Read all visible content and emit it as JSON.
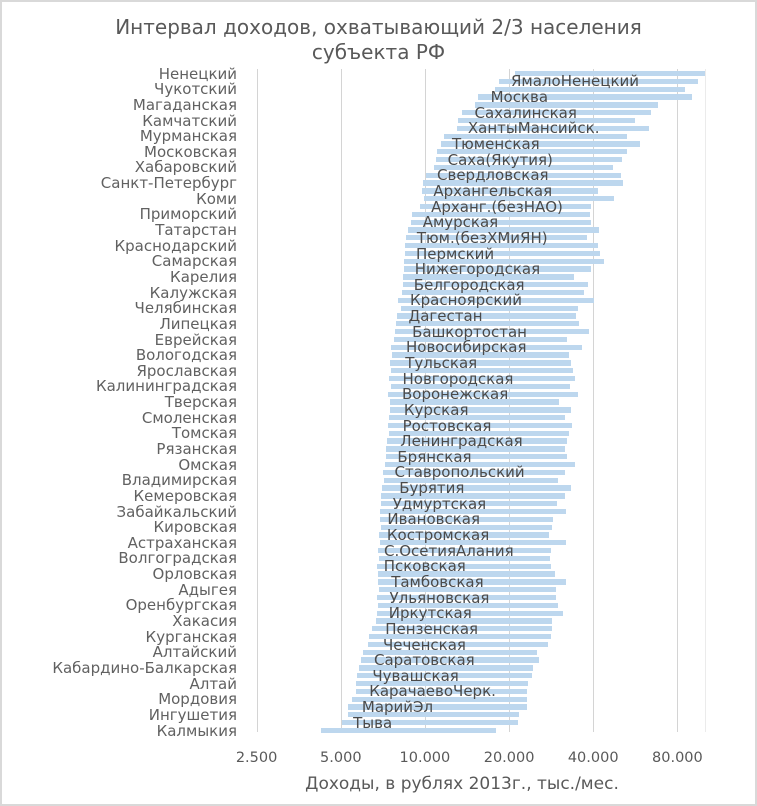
{
  "title": {
    "line1": "Интервал доходов, охватывающий 2/3 населения",
    "line2": "субъекта РФ"
  },
  "x_axis": {
    "title": "Доходы, в рублях 2013г., тыс./мес.",
    "scale": "log2",
    "min": 2500,
    "max": 100000,
    "ticks": [
      {
        "label": "2.500",
        "value": 2500
      },
      {
        "label": "5.000",
        "value": 5000
      },
      {
        "label": "10.000",
        "value": 10000
      },
      {
        "label": "20.000",
        "value": 20000
      },
      {
        "label": "40.000",
        "value": 40000
      },
      {
        "label": "80.000",
        "value": 80000
      }
    ]
  },
  "colors": {
    "bar_fill": "#BDD7EE",
    "gridline": "#D4D4D4",
    "plot_edge": "#E9E9E9",
    "axis_text": "#616161",
    "bar_label_text": "#4A4A4A",
    "title_text": "#595959",
    "frame": "#D9D9D9"
  },
  "chart_data": {
    "type": "bar",
    "subtype": "horizontal-range-bars",
    "title": "Интервал доходов, охватывающий 2/3 населения субъекта РФ",
    "xlabel": "Доходы, в рублях 2013г., тыс./мес.",
    "ylabel": "",
    "x_range": [
      2500,
      100000
    ],
    "grid": "vertical",
    "legend": "none",
    "regions": [
      {
        "name": "Ненецкий",
        "side": "axis",
        "low": 21000,
        "high": 100750
      },
      {
        "name": "ЯмалоНенецкий",
        "side": "bar",
        "low": 18380,
        "high": 94790,
        "label_at": 20490
      },
      {
        "name": "Чукотский",
        "side": "axis",
        "low": 17780,
        "high": 84890
      },
      {
        "name": "Москва",
        "side": "bar",
        "low": 15530,
        "high": 90150,
        "label_at": 17320
      },
      {
        "name": "Магаданская",
        "side": "axis",
        "low": 15160,
        "high": 68240
      },
      {
        "name": "Сахалинская",
        "side": "bar",
        "low": 13540,
        "high": 64260,
        "label_at": 15170
      },
      {
        "name": "Камчатский",
        "side": "axis",
        "low": 13180,
        "high": 56330
      },
      {
        "name": "ХантыМансийск.",
        "side": "bar",
        "low": 12980,
        "high": 63160,
        "label_at": 14370
      },
      {
        "name": "Мурманская",
        "side": "axis",
        "low": 11720,
        "high": 52740
      },
      {
        "name": "Тюменская",
        "side": "bar",
        "low": 11390,
        "high": 59030,
        "label_at": 12600
      },
      {
        "name": "Московская",
        "side": "axis",
        "low": 11050,
        "high": 52740
      },
      {
        "name": "Саха(Якутия)",
        "side": "bar",
        "low": 10960,
        "high": 50690,
        "label_at": 12150
      },
      {
        "name": "Хабаровский",
        "side": "axis",
        "low": 10730,
        "high": 47030
      },
      {
        "name": "Свердловская",
        "side": "bar",
        "low": 10110,
        "high": 50320,
        "label_at": 11140
      },
      {
        "name": "Санкт-Петербург",
        "side": "axis",
        "low": 9860,
        "high": 51070
      },
      {
        "name": "Архангельская",
        "side": "bar",
        "low": 9750,
        "high": 41770,
        "label_at": 10810
      },
      {
        "name": "Коми",
        "side": "axis",
        "low": 9960,
        "high": 47300
      },
      {
        "name": "Арханг.(безНАО)",
        "side": "bar",
        "low": 9610,
        "high": 39240,
        "label_at": 10610
      },
      {
        "name": "Приморский",
        "side": "axis",
        "low": 9020,
        "high": 38820
      },
      {
        "name": "Амурская",
        "side": "bar",
        "low": 8890,
        "high": 39400,
        "label_at": 9900
      },
      {
        "name": "Татарстан",
        "side": "axis",
        "low": 8690,
        "high": 42010
      },
      {
        "name": "Тюм.(безХМиЯН)",
        "side": "bar",
        "low": 8550,
        "high": 37870,
        "label_at": 9440
      },
      {
        "name": "Краснодарский",
        "side": "axis",
        "low": 8510,
        "high": 41500
      },
      {
        "name": "Пермский",
        "side": "bar",
        "low": 8490,
        "high": 42290,
        "label_at": 9370
      },
      {
        "name": "Самарская",
        "side": "axis",
        "low": 8400,
        "high": 43630
      },
      {
        "name": "Нижегородская",
        "side": "bar",
        "low": 8380,
        "high": 39400,
        "label_at": 9270
      },
      {
        "name": "Карелия",
        "side": "axis",
        "low": 8350,
        "high": 34140
      },
      {
        "name": "Белгородская",
        "side": "bar",
        "low": 8330,
        "high": 38470,
        "label_at": 9200
      },
      {
        "name": "Калужская",
        "side": "axis",
        "low": 8270,
        "high": 37040
      },
      {
        "name": "Красноярский",
        "side": "bar",
        "low": 8000,
        "high": 40180,
        "label_at": 8920
      },
      {
        "name": "Челябинская",
        "side": "axis",
        "low": 8240,
        "high": 35170
      },
      {
        "name": "Дагестан",
        "side": "bar",
        "low": 7910,
        "high": 34790,
        "label_at": 8810
      },
      {
        "name": "Липецкая",
        "side": "axis",
        "low": 7890,
        "high": 35540
      },
      {
        "name": "Башкортостан",
        "side": "bar",
        "low": 7810,
        "high": 38790,
        "label_at": 9070
      },
      {
        "name": "Еврейская",
        "side": "axis",
        "low": 7740,
        "high": 32310
      },
      {
        "name": "Новосибирская",
        "side": "bar",
        "low": 7530,
        "high": 36490,
        "label_at": 8630
      },
      {
        "name": "Вологодская",
        "side": "axis",
        "low": 7640,
        "high": 32810
      },
      {
        "name": "Тульская",
        "side": "bar",
        "low": 7480,
        "high": 33410,
        "label_at": 8570
      },
      {
        "name": "Ярославская",
        "side": "axis",
        "low": 7590,
        "high": 33830
      },
      {
        "name": "Новгородская",
        "side": "bar",
        "low": 7410,
        "high": 34340,
        "label_at": 8380
      },
      {
        "name": "Калининградская",
        "side": "axis",
        "low": 7530,
        "high": 33060
      },
      {
        "name": "Воронежская",
        "side": "bar",
        "low": 7360,
        "high": 35400,
        "label_at": 8350
      },
      {
        "name": "Тверская",
        "side": "axis",
        "low": 7510,
        "high": 30200
      },
      {
        "name": "Курская",
        "side": "bar",
        "low": 7510,
        "high": 33360,
        "label_at": 8480
      },
      {
        "name": "Смоленская",
        "side": "axis",
        "low": 7430,
        "high": 31620
      },
      {
        "name": "Ростовская",
        "side": "bar",
        "low": 7390,
        "high": 33470,
        "label_at": 8390
      },
      {
        "name": "Томская",
        "side": "axis",
        "low": 7410,
        "high": 32710
      },
      {
        "name": "Ленинградская",
        "side": "bar",
        "low": 7310,
        "high": 32360,
        "label_at": 8230
      },
      {
        "name": "Рязанская",
        "side": "axis",
        "low": 7280,
        "high": 31730
      },
      {
        "name": "Брянская",
        "side": "bar",
        "low": 7230,
        "high": 32120,
        "label_at": 8040
      },
      {
        "name": "Омская",
        "side": "axis",
        "low": 7170,
        "high": 34390
      },
      {
        "name": "Ставропольский",
        "side": "bar",
        "low": 7090,
        "high": 31730,
        "label_at": 7850
      },
      {
        "name": "Владимирская",
        "side": "axis",
        "low": 7150,
        "high": 29850
      },
      {
        "name": "Бурятия",
        "side": "bar",
        "low": 7040,
        "high": 33440,
        "label_at": 8160
      },
      {
        "name": "Кемеровская",
        "side": "axis",
        "low": 6960,
        "high": 31830
      },
      {
        "name": "Удмуртская",
        "side": "bar",
        "low": 6950,
        "high": 29700,
        "label_at": 7730
      },
      {
        "name": "Забайкальский",
        "side": "axis",
        "low": 6910,
        "high": 32010
      },
      {
        "name": "Ивановская",
        "side": "bar",
        "low": 6890,
        "high": 28690,
        "label_at": 7400
      },
      {
        "name": "Кировская",
        "side": "axis",
        "low": 6940,
        "high": 28480
      },
      {
        "name": "Костромская",
        "side": "bar",
        "low": 6860,
        "high": 27740,
        "label_at": 7370
      },
      {
        "name": "Астраханская",
        "side": "axis",
        "low": 6880,
        "high": 32070
      },
      {
        "name": "С.ОсетияАлания",
        "side": "bar",
        "low": 6810,
        "high": 28250,
        "label_at": 7200
      },
      {
        "name": "Волгоградская",
        "side": "axis",
        "low": 6840,
        "high": 27950
      },
      {
        "name": "Псковская",
        "side": "bar",
        "low": 6760,
        "high": 28250,
        "label_at": 7180
      },
      {
        "name": "Орловская",
        "side": "axis",
        "low": 6780,
        "high": 29190
      },
      {
        "name": "Тамбовская",
        "side": "bar",
        "low": 6770,
        "high": 31960,
        "label_at": 7640
      },
      {
        "name": "Адыгея",
        "side": "axis",
        "low": 6820,
        "high": 29480
      },
      {
        "name": "Ульяновская",
        "side": "bar",
        "low": 6730,
        "high": 29530,
        "label_at": 7530
      },
      {
        "name": "Оренбургская",
        "side": "axis",
        "low": 6770,
        "high": 29950
      },
      {
        "name": "Иркутская",
        "side": "bar",
        "low": 6720,
        "high": 31160,
        "label_at": 7490
      },
      {
        "name": "Хакасия",
        "side": "axis",
        "low": 6670,
        "high": 28500
      },
      {
        "name": "Пензенская",
        "side": "bar",
        "low": 6490,
        "high": 28430,
        "label_at": 7270
      },
      {
        "name": "Курганская",
        "side": "axis",
        "low": 6320,
        "high": 28180
      },
      {
        "name": "Чеченская",
        "side": "bar",
        "low": 6240,
        "high": 27580,
        "label_at": 7140
      },
      {
        "name": "Алтайский",
        "side": "axis",
        "low": 6020,
        "high": 25230
      },
      {
        "name": "Саратовская",
        "side": "bar",
        "low": 5900,
        "high": 25590,
        "label_at": 6630
      },
      {
        "name": "Кабардино-Балкарская",
        "side": "axis",
        "low": 5830,
        "high": 24360
      },
      {
        "name": "Чувашская",
        "side": "bar",
        "low": 5700,
        "high": 24180,
        "label_at": 6540
      },
      {
        "name": "Алтай",
        "side": "axis",
        "low": 5680,
        "high": 23370
      },
      {
        "name": "КарачаевоЧерк.",
        "side": "bar",
        "low": 5650,
        "high": 23160,
        "label_at": 6370
      },
      {
        "name": "Мордовия",
        "side": "axis",
        "low": 5490,
        "high": 23160
      },
      {
        "name": "МарийЭл",
        "side": "bar",
        "low": 5310,
        "high": 23090,
        "label_at": 6000
      },
      {
        "name": "Ингушетия",
        "side": "axis",
        "low": 5290,
        "high": 21700
      },
      {
        "name": "Тыва",
        "side": "bar",
        "low": 5060,
        "high": 21490,
        "label_at": 5580
      },
      {
        "name": "Калмыкия",
        "side": "axis",
        "low": 4250,
        "high": 17960
      }
    ]
  }
}
